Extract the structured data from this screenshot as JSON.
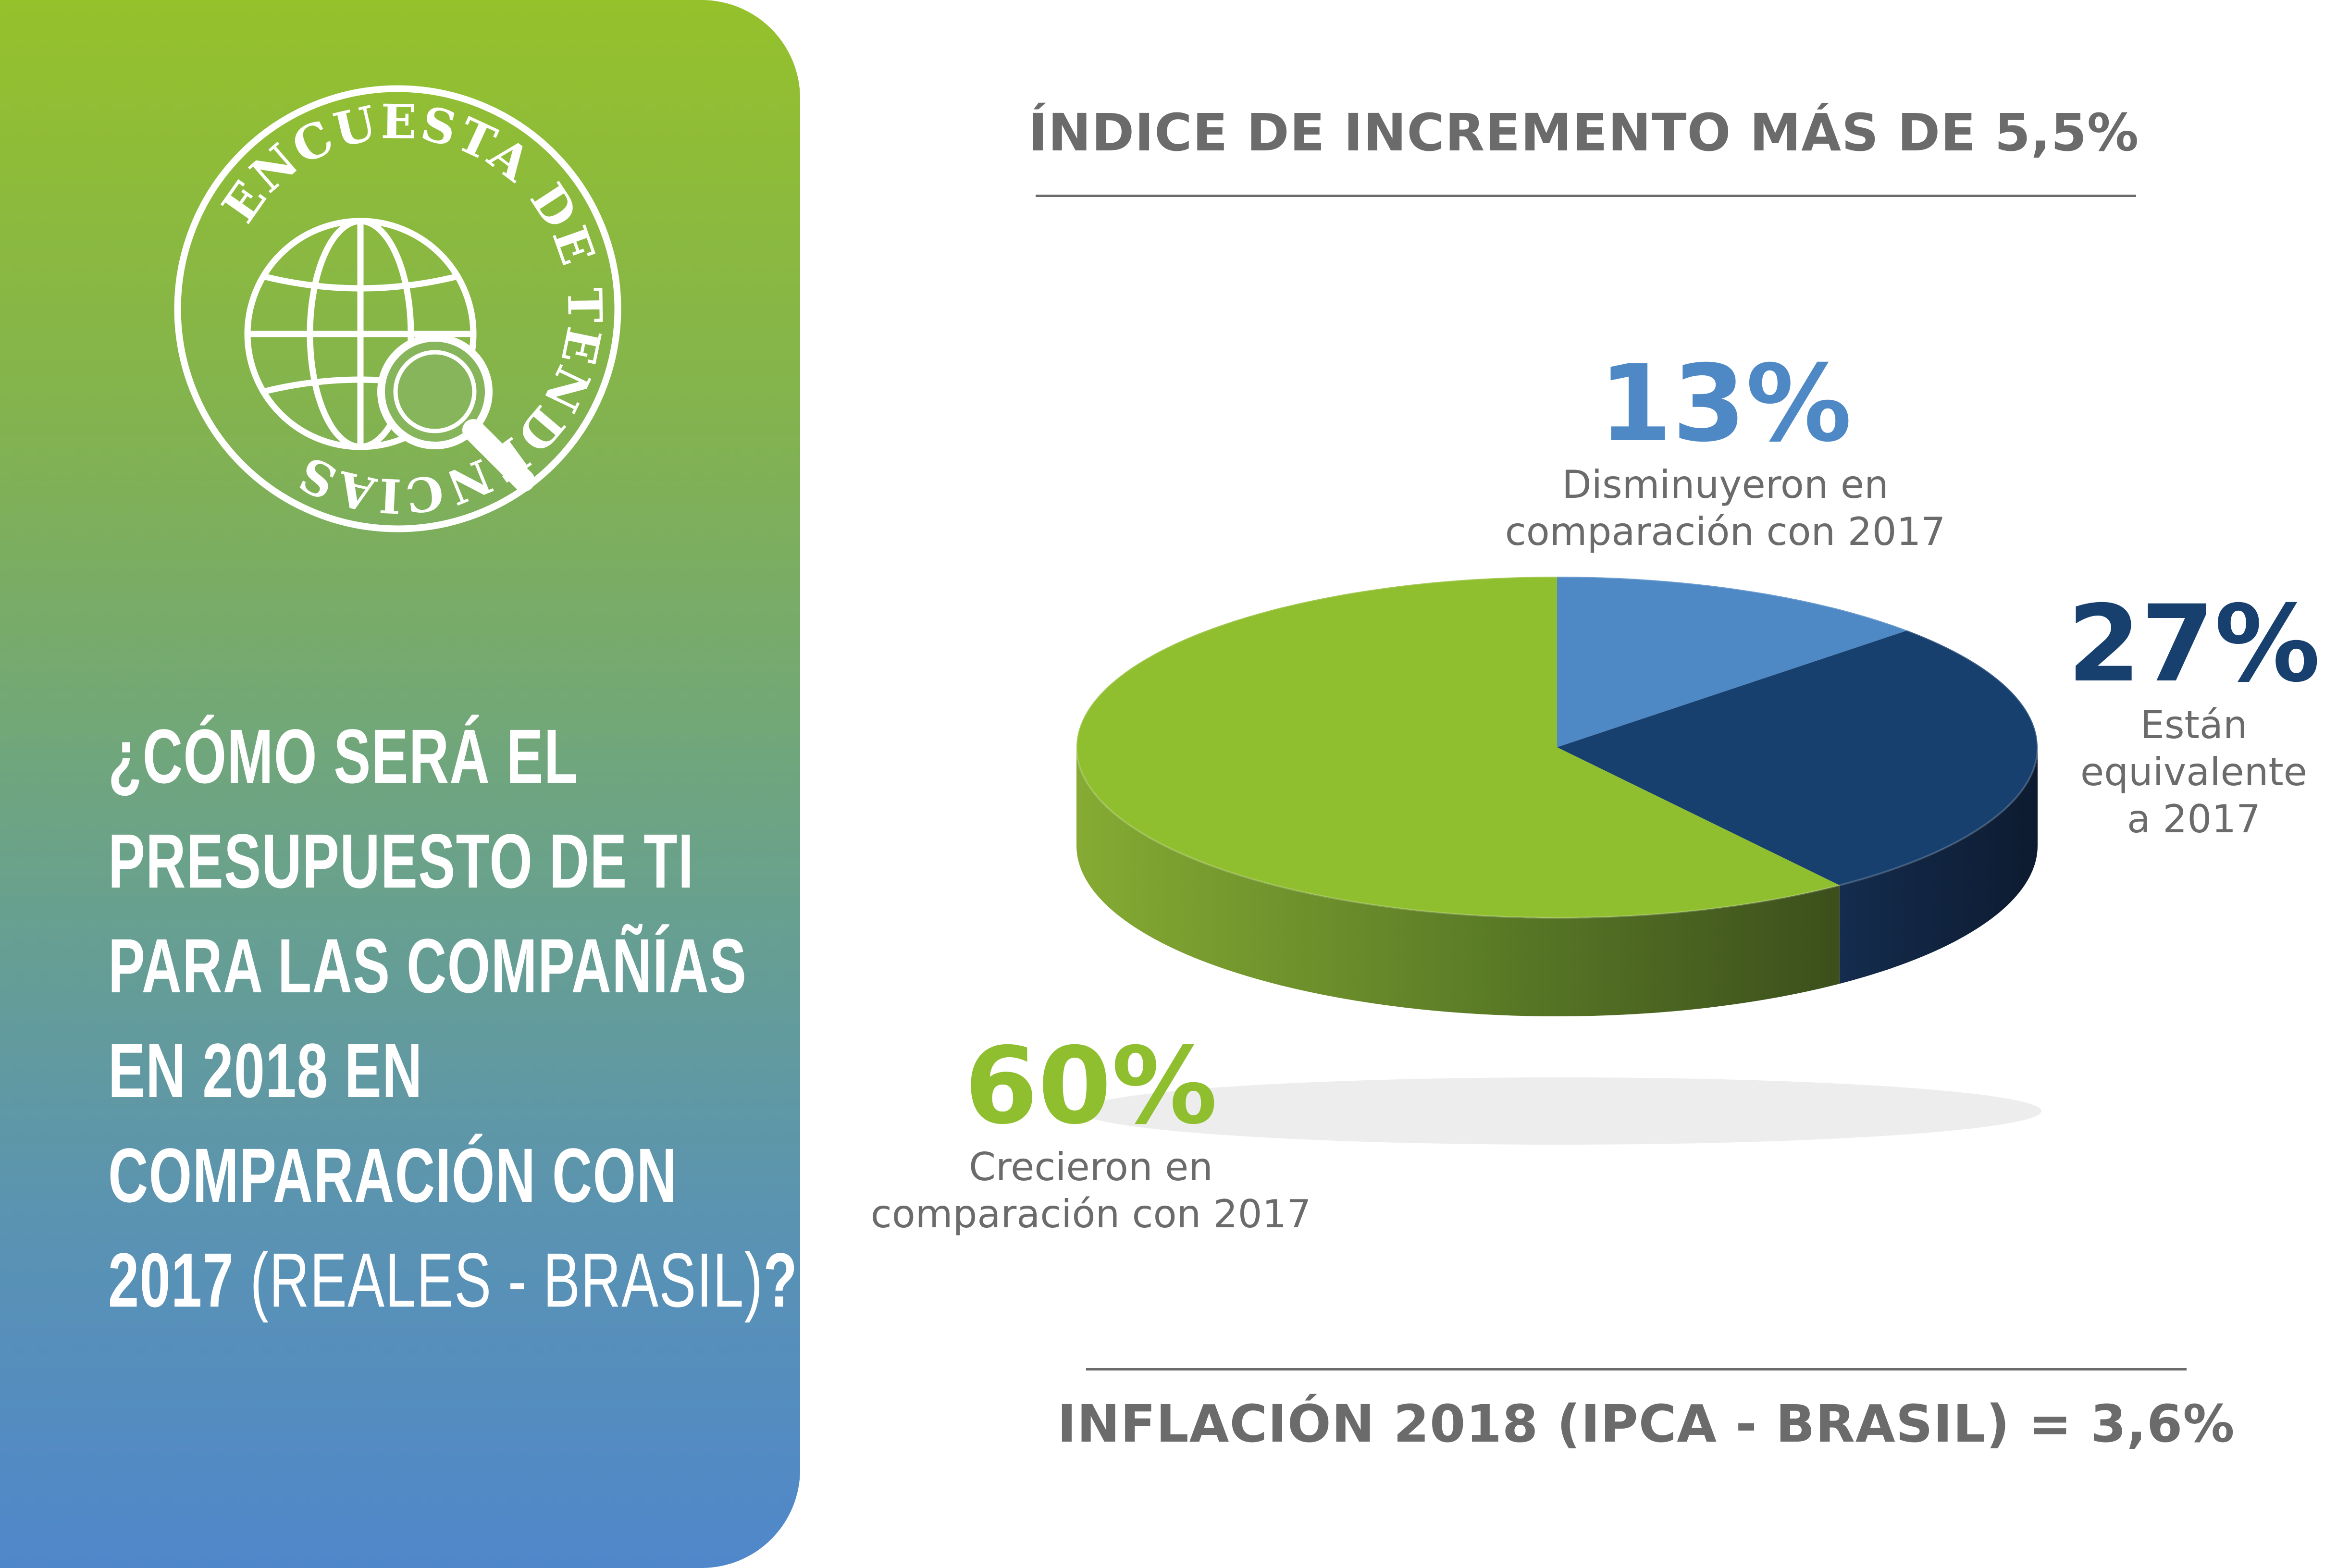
{
  "colors": {
    "decreased": "#4e89c6",
    "equivalent": "#17406f",
    "grew": "#8fbe2e",
    "text_gray": "#6b6b6b",
    "panel_top": "#95c12b",
    "panel_bottom": "#4f87cb"
  },
  "logo": {
    "text": "ENCUESTA DE TENDENCIAS",
    "icon": "globe-magnifier-icon"
  },
  "question": {
    "line1": "¿CÓMO SERÁ EL",
    "line2": "PRESUPUESTO DE TI",
    "line3": "PARA LAS COMPAÑÍAS",
    "line4": "EN 2018 EN",
    "line5": "COMPARACIÓN CON",
    "line6_bold": "2017",
    "line6_light": "(REALES - BRASIL)",
    "line6_end": "?"
  },
  "header_title": "ÍNDICE DE INCREMENTO MÁS DE 5,5%",
  "footer_title": "INFLACIÓN 2018 (IPCA - BRASIL) = 3,6%",
  "chart_data": {
    "type": "pie",
    "style": "3d",
    "categories": [
      "Disminuyeron en comparación con 2017",
      "Están equivalente a 2017",
      "Crecieron en comparación con 2017"
    ],
    "values": [
      13,
      27,
      60
    ],
    "unit": "%",
    "labels": [
      {
        "pct": "13%",
        "desc_line1": "Disminuyeron en",
        "desc_line2": "comparación con 2017",
        "desc_line3": ""
      },
      {
        "pct": "27%",
        "desc_line1": "Están",
        "desc_line2": "equivalente",
        "desc_line3": "a 2017"
      },
      {
        "pct": "60%",
        "desc_line1": "Crecieron en",
        "desc_line2": "comparación con 2017",
        "desc_line3": ""
      }
    ]
  }
}
